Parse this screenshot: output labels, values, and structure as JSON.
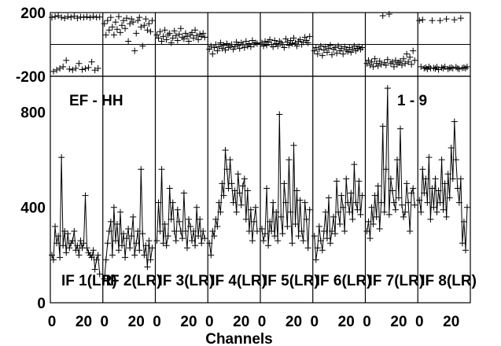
{
  "chart_data": {
    "type": "line",
    "xlabel": "Channels",
    "annotations": {
      "left": "EF - HH",
      "right": "1 - 9"
    },
    "phase_panel": {
      "ylim": [
        -200,
        200
      ],
      "yticks": [
        200,
        -200
      ]
    },
    "amp_panel": {
      "ylim": [
        0,
        950
      ],
      "yticks": [
        800,
        400,
        0
      ]
    },
    "x_tick_labels": [
      "0",
      "20",
      "0",
      "20",
      "0",
      "20",
      "0",
      "20",
      "0",
      "20",
      "0",
      "20",
      "0",
      "20",
      "0",
      "20"
    ],
    "x_per_panel": {
      "xlim": [
        0,
        31
      ]
    },
    "series": [
      {
        "name": "IF 1(LR)",
        "phase": [
          170,
          -170,
          175,
          -160,
          180,
          -150,
          170,
          -140,
          165,
          -100,
          175,
          -155,
          170,
          -160,
          178,
          -150,
          165,
          -120,
          172,
          -158,
          170,
          -152,
          174,
          -145,
          168,
          -110,
          176,
          -162,
          170,
          -150,
          172
        ],
        "amplitude": [
          200,
          180,
          320,
          250,
          280,
          190,
          610,
          240,
          300,
          210,
          290,
          230,
          250,
          260,
          300,
          220,
          240,
          200,
          260,
          230,
          250,
          450,
          230,
          210,
          200,
          190,
          220,
          140,
          180,
          200,
          120
        ]
      },
      {
        "name": "IF 2(LR)",
        "phase": [
          130,
          60,
          150,
          90,
          170,
          110,
          60,
          140,
          95,
          175,
          75,
          120,
          150,
          100,
          165,
          20,
          130,
          160,
          140,
          -40,
          70,
          150,
          170,
          110,
          -10,
          120,
          160,
          90,
          130,
          80,
          150
        ],
        "amplitude": [
          100,
          180,
          250,
          300,
          340,
          200,
          400,
          260,
          330,
          220,
          380,
          240,
          290,
          190,
          270,
          310,
          230,
          280,
          360,
          200,
          250,
          300,
          220,
          560,
          290,
          200,
          240,
          150,
          260,
          180,
          230
        ]
      },
      {
        "name": "IF 3(LR)",
        "phase": [
          60,
          40,
          80,
          20,
          50,
          90,
          30,
          60,
          70,
          10,
          40,
          85,
          55,
          25,
          65,
          100,
          45,
          35,
          70,
          50,
          20,
          60,
          75,
          40,
          90,
          55,
          30,
          65,
          50,
          70,
          45
        ],
        "amplitude": [
          260,
          420,
          300,
          560,
          250,
          330,
          240,
          280,
          480,
          350,
          420,
          300,
          260,
          390,
          340,
          300,
          270,
          460,
          300,
          230,
          350,
          320,
          260,
          300,
          240,
          400,
          280,
          350,
          250,
          300,
          270
        ]
      },
      {
        "name": "IF 4(LR)",
        "phase": [
          -30,
          -10,
          -60,
          -20,
          0,
          -40,
          -15,
          10,
          -25,
          -5,
          -35,
          5,
          -20,
          -10,
          0,
          -30,
          -15,
          15,
          -5,
          -25,
          10,
          0,
          -20,
          20,
          -10,
          5,
          -15,
          25,
          0,
          10,
          5
        ],
        "amplitude": [
          250,
          200,
          300,
          280,
          350,
          320,
          420,
          380,
          500,
          450,
          640,
          560,
          480,
          600,
          500,
          420,
          470,
          380,
          540,
          460,
          410,
          490,
          520,
          350,
          470,
          300,
          390,
          260,
          340,
          400,
          300
        ]
      },
      {
        "name": "IF 5(LR)",
        "phase": [
          10,
          -10,
          20,
          -5,
          15,
          30,
          0,
          -15,
          25,
          5,
          -10,
          20,
          10,
          0,
          -20,
          35,
          15,
          -5,
          25,
          5,
          40,
          10,
          -10,
          20,
          30,
          0,
          15,
          45,
          25,
          10,
          50
        ],
        "amplitude": [
          310,
          260,
          290,
          480,
          240,
          340,
          300,
          420,
          280,
          380,
          260,
          790,
          360,
          290,
          500,
          420,
          320,
          600,
          380,
          250,
          660,
          330,
          470,
          280,
          430,
          300,
          260,
          420,
          350,
          230,
          390
        ]
      },
      {
        "name": "IF 6(LR)",
        "phase": [
          -40,
          -20,
          -60,
          -30,
          -10,
          -70,
          -35,
          -15,
          -50,
          -25,
          -5,
          -65,
          -30,
          -20,
          -55,
          -10,
          -40,
          -25,
          -60,
          -15,
          -35,
          -45,
          -20,
          -50,
          -30,
          -10,
          -40,
          -25,
          -15,
          -30,
          -20
        ],
        "amplitude": [
          280,
          180,
          230,
          320,
          260,
          220,
          300,
          380,
          270,
          440,
          250,
          300,
          360,
          290,
          510,
          380,
          330,
          450,
          400,
          300,
          520,
          420,
          380,
          460,
          350,
          580,
          420,
          390,
          510,
          370,
          450
        ]
      },
      {
        "name": "IF 7(LR)",
        "phase": [
          -120,
          -100,
          -130,
          -110,
          -140,
          -90,
          -120,
          -135,
          -105,
          -125,
          180,
          -115,
          -130,
          -95,
          190,
          -120,
          -110,
          -140,
          -100,
          -125,
          -115,
          -105,
          -130,
          -90,
          -120,
          -60,
          -110,
          -80,
          -125,
          -40,
          -100
        ],
        "amplitude": [
          300,
          340,
          270,
          400,
          330,
          450,
          360,
          490,
          310,
          420,
          740,
          380,
          560,
          900,
          370,
          520,
          470,
          420,
          390,
          600,
          440,
          730,
          410,
          360,
          380,
          500,
          420,
          300,
          460,
          480,
          410
        ]
      },
      {
        "name": "IF 8(LR)",
        "phase": [
          150,
          -140,
          155,
          -150,
          -145,
          -155,
          -140,
          -150,
          150,
          -148,
          -152,
          -142,
          -158,
          150,
          -145,
          -150,
          -140,
          160,
          -155,
          -148,
          -145,
          -150,
          155,
          -142,
          -150,
          -155,
          165,
          -148,
          -145,
          -150,
          -140
        ],
        "amplitude": [
          430,
          380,
          560,
          460,
          520,
          420,
          610,
          350,
          480,
          400,
          520,
          380,
          470,
          420,
          600,
          390,
          500,
          360,
          540,
          440,
          650,
          520,
          760,
          600,
          480,
          420,
          520,
          250,
          340,
          220,
          400
        ]
      }
    ]
  }
}
